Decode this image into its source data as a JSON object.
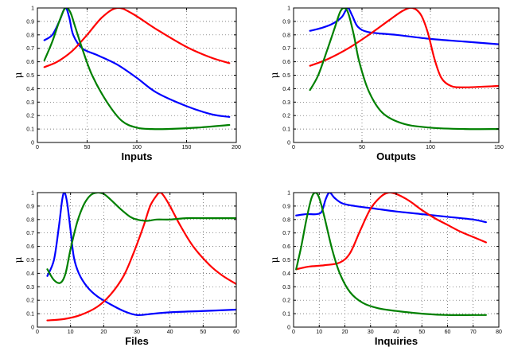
{
  "chart_data": [
    {
      "type": "line",
      "xlabel": "Inputs",
      "ylabel": "μ",
      "xlim": [
        0,
        200
      ],
      "ylim": [
        0,
        1
      ],
      "xticks": [
        0,
        50,
        100,
        150,
        200
      ],
      "yticks": [
        0,
        0.1,
        0.2,
        0.3,
        0.4,
        0.5,
        0.6,
        0.7,
        0.8,
        0.9,
        1
      ],
      "grid": true,
      "series": [
        {
          "color": "#0000ff",
          "x": [
            7,
            15,
            22,
            28,
            32,
            36,
            45,
            60,
            80,
            100,
            120,
            150,
            175,
            193
          ],
          "y": [
            0.76,
            0.8,
            0.9,
            1.0,
            0.93,
            0.8,
            0.7,
            0.65,
            0.58,
            0.48,
            0.37,
            0.27,
            0.21,
            0.19
          ]
        },
        {
          "color": "#ff0000",
          "x": [
            7,
            20,
            35,
            50,
            65,
            80,
            95,
            120,
            150,
            175,
            193
          ],
          "y": [
            0.56,
            0.6,
            0.68,
            0.8,
            0.93,
            1.0,
            0.96,
            0.84,
            0.71,
            0.63,
            0.59
          ]
        },
        {
          "color": "#008000",
          "x": [
            7,
            15,
            22,
            28,
            33,
            38,
            45,
            55,
            70,
            85,
            100,
            115,
            130,
            160,
            193
          ],
          "y": [
            0.61,
            0.75,
            0.9,
            1.0,
            0.97,
            0.86,
            0.7,
            0.5,
            0.3,
            0.16,
            0.11,
            0.1,
            0.1,
            0.11,
            0.13
          ]
        }
      ]
    },
    {
      "type": "line",
      "xlabel": "Outputs",
      "ylabel": "μ",
      "xlim": [
        0,
        150
      ],
      "ylim": [
        0,
        1
      ],
      "xticks": [
        0,
        50,
        100,
        150
      ],
      "yticks": [
        0,
        0.1,
        0.2,
        0.3,
        0.4,
        0.5,
        0.6,
        0.7,
        0.8,
        0.9,
        1
      ],
      "grid": true,
      "series": [
        {
          "color": "#0000ff",
          "x": [
            12,
            20,
            28,
            35,
            38,
            40,
            43,
            47,
            55,
            75,
            100,
            125,
            150
          ],
          "y": [
            0.83,
            0.85,
            0.88,
            0.93,
            0.98,
            1.0,
            0.94,
            0.86,
            0.82,
            0.8,
            0.77,
            0.75,
            0.73
          ]
        },
        {
          "color": "#ff0000",
          "x": [
            12,
            25,
            40,
            55,
            70,
            80,
            87,
            93,
            98,
            103,
            108,
            115,
            125,
            150
          ],
          "y": [
            0.57,
            0.62,
            0.7,
            0.8,
            0.91,
            0.98,
            1.0,
            0.95,
            0.82,
            0.62,
            0.48,
            0.42,
            0.41,
            0.42
          ]
        },
        {
          "color": "#008000",
          "x": [
            12,
            18,
            25,
            30,
            34,
            37,
            40,
            44,
            48,
            55,
            65,
            80,
            100,
            125,
            150
          ],
          "y": [
            0.39,
            0.5,
            0.7,
            0.85,
            0.97,
            1.0,
            0.96,
            0.8,
            0.6,
            0.38,
            0.22,
            0.14,
            0.11,
            0.1,
            0.1
          ]
        }
      ]
    },
    {
      "type": "line",
      "xlabel": "Files",
      "ylabel": "μ",
      "xlim": [
        0,
        60
      ],
      "ylim": [
        0,
        1
      ],
      "xticks": [
        0,
        10,
        20,
        30,
        40,
        50,
        60
      ],
      "yticks": [
        0,
        0.1,
        0.2,
        0.3,
        0.4,
        0.5,
        0.6,
        0.7,
        0.8,
        0.9,
        1
      ],
      "grid": true,
      "series": [
        {
          "color": "#0000ff",
          "x": [
            3,
            5,
            6.5,
            7.5,
            8.2,
            9,
            10,
            11,
            12.5,
            15,
            18,
            22,
            26,
            30,
            35,
            40,
            50,
            60
          ],
          "y": [
            0.38,
            0.5,
            0.75,
            0.95,
            1.0,
            0.92,
            0.72,
            0.52,
            0.4,
            0.3,
            0.23,
            0.17,
            0.12,
            0.09,
            0.1,
            0.11,
            0.12,
            0.13
          ]
        },
        {
          "color": "#ff0000",
          "x": [
            3,
            8,
            13,
            18,
            22,
            26,
            29,
            32,
            34,
            36,
            37,
            38,
            40,
            43,
            47,
            52,
            56,
            60
          ],
          "y": [
            0.05,
            0.06,
            0.09,
            0.15,
            0.24,
            0.38,
            0.55,
            0.75,
            0.9,
            0.98,
            1.0,
            0.98,
            0.9,
            0.76,
            0.6,
            0.46,
            0.38,
            0.32
          ]
        },
        {
          "color": "#008000",
          "x": [
            3,
            5,
            7,
            8.5,
            10,
            12,
            14,
            16,
            18,
            20,
            22,
            25,
            28,
            30,
            33,
            36,
            40,
            45,
            50,
            55,
            60
          ],
          "y": [
            0.43,
            0.35,
            0.33,
            0.4,
            0.58,
            0.78,
            0.91,
            0.98,
            1.0,
            0.99,
            0.95,
            0.88,
            0.82,
            0.8,
            0.79,
            0.8,
            0.8,
            0.81,
            0.81,
            0.81,
            0.81
          ]
        }
      ]
    },
    {
      "type": "line",
      "xlabel": "Inquiries",
      "ylabel": "μ",
      "xlim": [
        0,
        80
      ],
      "ylim": [
        0,
        1
      ],
      "xticks": [
        0,
        10,
        20,
        30,
        40,
        50,
        60,
        70,
        80
      ],
      "yticks": [
        0,
        0.1,
        0.2,
        0.3,
        0.4,
        0.5,
        0.6,
        0.7,
        0.8,
        0.9,
        1
      ],
      "grid": true,
      "series": [
        {
          "color": "#0000ff",
          "x": [
            1,
            5,
            9,
            11,
            12.5,
            14,
            16,
            19,
            24,
            32,
            40,
            50,
            60,
            70,
            75
          ],
          "y": [
            0.83,
            0.84,
            0.84,
            0.86,
            0.95,
            1.0,
            0.96,
            0.92,
            0.9,
            0.88,
            0.86,
            0.84,
            0.82,
            0.8,
            0.78
          ]
        },
        {
          "color": "#ff0000",
          "x": [
            1,
            6,
            12,
            18,
            22,
            26,
            30,
            34,
            37,
            40,
            45,
            50,
            55,
            60,
            65,
            70,
            75
          ],
          "y": [
            0.43,
            0.45,
            0.46,
            0.48,
            0.55,
            0.72,
            0.88,
            0.97,
            1.0,
            0.99,
            0.94,
            0.87,
            0.81,
            0.76,
            0.71,
            0.67,
            0.63
          ]
        },
        {
          "color": "#008000",
          "x": [
            1,
            3,
            5,
            7,
            8.5,
            10,
            12,
            15,
            18,
            22,
            27,
            33,
            40,
            50,
            60,
            70,
            75
          ],
          "y": [
            0.43,
            0.6,
            0.8,
            0.96,
            1.0,
            0.96,
            0.82,
            0.58,
            0.4,
            0.26,
            0.18,
            0.14,
            0.12,
            0.1,
            0.09,
            0.09,
            0.09
          ]
        }
      ]
    }
  ]
}
